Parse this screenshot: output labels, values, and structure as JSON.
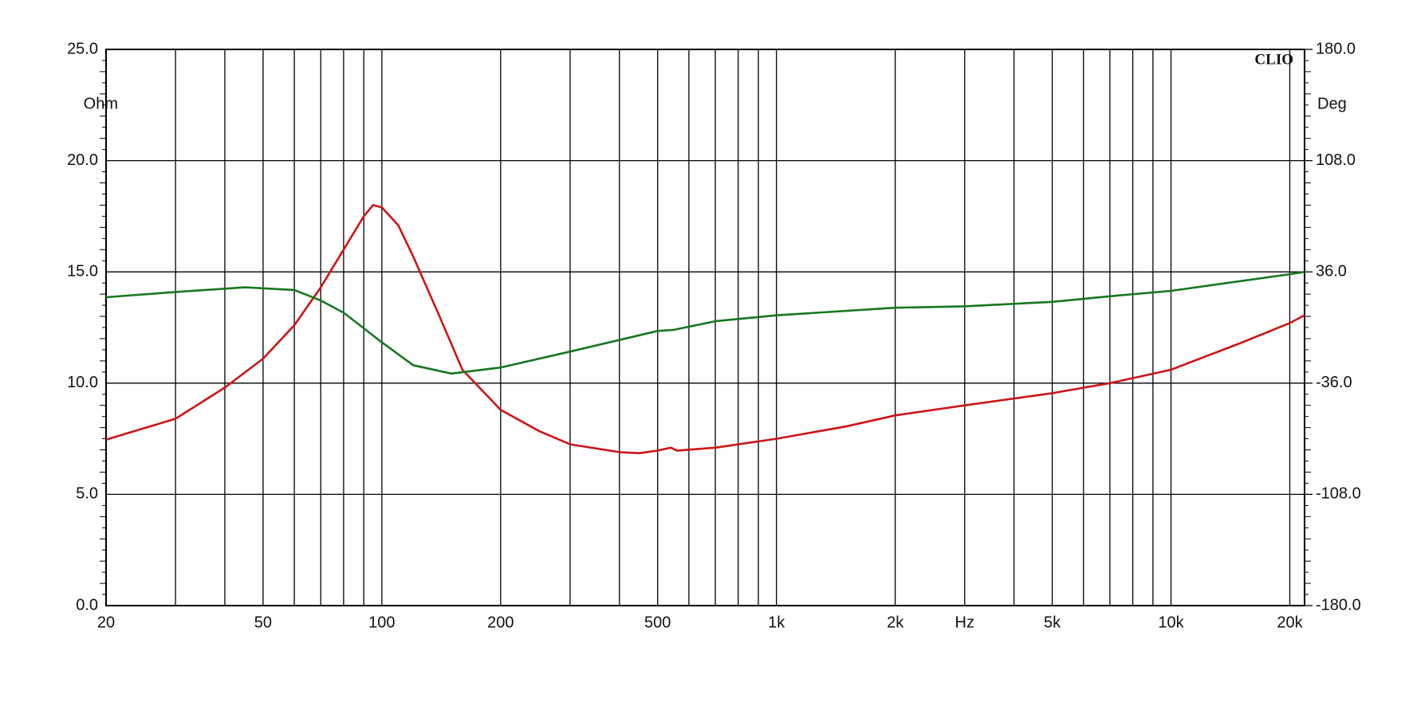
{
  "chart_data": {
    "type": "line",
    "annotation": "CLIO",
    "ylabel": "Ohm",
    "y2label": "Deg",
    "xscale": "log",
    "grid": true,
    "xlim": [
      20,
      21800
    ],
    "xticks": [
      20,
      50,
      100,
      200,
      500,
      {
        "value": 1000,
        "label": "1k"
      },
      {
        "value": 2000,
        "label": "2k"
      },
      {
        "value": 3000,
        "label": "Hz"
      },
      {
        "value": 5000,
        "label": "5k"
      },
      {
        "value": 10000,
        "label": "10k"
      },
      {
        "value": 20000,
        "label": "20k"
      }
    ],
    "x_minor_grid": [
      30,
      40,
      60,
      70,
      80,
      90,
      300,
      400,
      600,
      700,
      800,
      900,
      4000,
      6000,
      7000,
      8000,
      9000
    ],
    "ylim": [
      0,
      25
    ],
    "yticks": [
      {
        "value": 0,
        "label": "0.0"
      },
      {
        "value": 5,
        "label": "5.0"
      },
      {
        "value": 10,
        "label": "10.0"
      },
      {
        "value": 15,
        "label": "15.0"
      },
      {
        "value": 20,
        "label": "20.0"
      },
      {
        "value": 25,
        "label": "25.0"
      }
    ],
    "y2lim": [
      -180,
      180
    ],
    "y2ticks": [
      {
        "value": -180,
        "label": "-180.0"
      },
      {
        "value": -108,
        "label": "-108.0"
      },
      {
        "value": -36,
        "label": "-36.0"
      },
      {
        "value": 36,
        "label": "36.0"
      },
      {
        "value": 108,
        "label": "108.0"
      },
      {
        "value": 180,
        "label": "180.0"
      }
    ],
    "series": [
      {
        "color": "#cc1515",
        "axis": "y",
        "x": [
          20,
          30,
          40,
          50,
          60,
          70,
          80,
          90,
          95,
          100,
          110,
          120,
          140,
          160,
          200,
          250,
          300,
          400,
          450,
          500,
          540,
          560,
          700,
          1000,
          1500,
          2000,
          3000,
          5000,
          7000,
          10000,
          15000,
          20000,
          21800
        ],
        "values": [
          7.46,
          8.4,
          9.8,
          11.1,
          12.6,
          14.3,
          16.0,
          17.5,
          18.0,
          17.9,
          17.1,
          15.7,
          13.0,
          10.6,
          8.8,
          7.85,
          7.25,
          6.9,
          6.85,
          6.97,
          7.1,
          6.97,
          7.1,
          7.5,
          8.05,
          8.55,
          9.0,
          9.55,
          10.0,
          10.6,
          11.8,
          12.7,
          13.05
        ]
      },
      {
        "color": "#17771d",
        "axis": "y2",
        "x": [
          20,
          30,
          45,
          60,
          70,
          80,
          100,
          120,
          150,
          200,
          300,
          500,
          550,
          700,
          1000,
          2000,
          3000,
          5000,
          7000,
          10000,
          20000,
          21800
        ],
        "values": [
          19.6,
          23.0,
          26.0,
          24.3,
          17.5,
          9.6,
          -9.6,
          -24.4,
          -29.8,
          -25.9,
          -15.6,
          -2.2,
          -1.5,
          4.1,
          7.9,
          12.8,
          13.7,
          16.6,
          20.2,
          23.7,
          34.5,
          36.0
        ]
      }
    ]
  }
}
